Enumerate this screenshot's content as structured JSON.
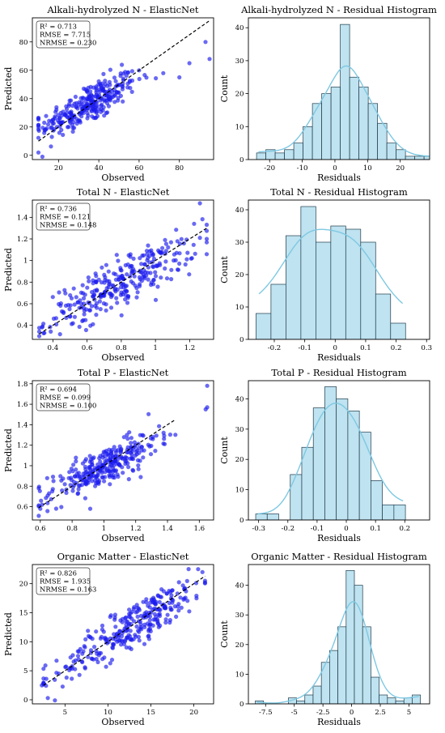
{
  "chart_data": [
    {
      "id": "p1s",
      "type": "scatter",
      "title": "Alkali-hydrolyzed N - ElasticNet",
      "xlabel": "Observed",
      "ylabel": "Predicted",
      "xlim": [
        7,
        97
      ],
      "ylim": [
        -3,
        97
      ],
      "xticks": [
        20,
        40,
        60,
        80
      ],
      "yticks": [
        0,
        20,
        40,
        60,
        80
      ],
      "stats": [
        "R² = 0.713",
        "RMSE = 7.715",
        "NRMSE = 0.230"
      ],
      "point_color": "#1a1aee",
      "diagonal": true,
      "trend": {
        "slope": 0.71,
        "intercept": 11.0,
        "noise": 7.0
      },
      "x_range": [
        10,
        95
      ],
      "n_points": 300,
      "x_center": 35,
      "x_spread": 12,
      "extra_points": [
        [
          60,
          60
        ],
        [
          72,
          58
        ],
        [
          80,
          55
        ],
        [
          93,
          80
        ],
        [
          95,
          68
        ],
        [
          12,
          -1
        ],
        [
          10,
          2
        ],
        [
          85,
          65
        ]
      ]
    },
    {
      "id": "p1h",
      "type": "bar",
      "title": "Alkali-hydrolyzed N - Residual Histogram",
      "xlabel": "Residuals",
      "ylabel": "Count",
      "xlim": [
        -26.5,
        29
      ],
      "ylim": [
        0,
        43
      ],
      "xticks": [
        -20,
        -10,
        0,
        10,
        20
      ],
      "yticks": [
        0,
        10,
        20,
        30,
        40
      ],
      "bin_start": -24,
      "bin_width": 2.85,
      "values": [
        2,
        3,
        2,
        3,
        5,
        10,
        17,
        20,
        22,
        41,
        25,
        22,
        17,
        11,
        5,
        3,
        1,
        1,
        1
      ],
      "bar_color": "#bfe3f0",
      "kde_color": "#7ec8e3"
    },
    {
      "id": "p2s",
      "type": "scatter",
      "title": "Total N - ElasticNet",
      "xlabel": "Observed",
      "ylabel": "Predicted",
      "xlim": [
        0.28,
        1.34
      ],
      "ylim": [
        0.27,
        1.56
      ],
      "xticks": [
        0.4,
        0.6,
        0.8,
        1.0,
        1.2
      ],
      "yticks": [
        0.4,
        0.6,
        0.8,
        1.0,
        1.2,
        1.4
      ],
      "stats": [
        "R² = 0.736",
        "RMSE = 0.121",
        "NRMSE = 0.148"
      ],
      "point_color": "#1a1aee",
      "diagonal": true,
      "trend": {
        "slope": 0.78,
        "intercept": 0.17,
        "noise": 0.11
      },
      "x_range": [
        0.32,
        1.3
      ],
      "n_points": 300,
      "x_center": 0.8,
      "x_spread": 0.22,
      "extra_points": [
        [
          1.26,
          1.53
        ],
        [
          0.32,
          0.3
        ],
        [
          0.35,
          0.33
        ],
        [
          1.3,
          1.2
        ]
      ]
    },
    {
      "id": "p2h",
      "type": "bar",
      "title": "Total N - Residual Histogram",
      "xlabel": "Residuals",
      "ylabel": "Count",
      "xlim": [
        -0.285,
        0.31
      ],
      "ylim": [
        0,
        43
      ],
      "xticks": [
        -0.2,
        -0.1,
        0.0,
        0.1,
        0.2,
        0.3
      ],
      "yticks": [
        0,
        10,
        20,
        30,
        40
      ],
      "bin_start": -0.26,
      "bin_width": 0.0491,
      "values": [
        8,
        17,
        32,
        41,
        30,
        35,
        34,
        30,
        14,
        5
      ],
      "bar_color": "#bfe3f0",
      "kde_color": "#7ec8e3"
    },
    {
      "id": "p3s",
      "type": "scatter",
      "title": "Total P - ElasticNet",
      "xlabel": "Observed",
      "ylabel": "Predicted",
      "xlim": [
        0.55,
        1.69
      ],
      "ylim": [
        0.47,
        1.83
      ],
      "xticks": [
        0.6,
        0.8,
        1.0,
        1.2,
        1.4,
        1.6
      ],
      "yticks": [
        0.6,
        0.8,
        1.0,
        1.2,
        1.4,
        1.6,
        1.8
      ],
      "stats": [
        "R² = 0.694",
        "RMSE = 0.099",
        "NRMSE = 0.100"
      ],
      "point_color": "#1a1aee",
      "diagonal": true,
      "trend": {
        "slope": 0.73,
        "intercept": 0.26,
        "noise": 0.09
      },
      "x_range": [
        0.59,
        1.45
      ],
      "n_points": 300,
      "x_center": 1.0,
      "x_spread": 0.17,
      "extra_points": [
        [
          1.65,
          1.78
        ],
        [
          1.65,
          1.57
        ],
        [
          1.64,
          1.55
        ],
        [
          0.59,
          0.51
        ],
        [
          0.6,
          0.58
        ]
      ]
    },
    {
      "id": "p3h",
      "type": "bar",
      "title": "Total P - Residual Histogram",
      "xlabel": "Residuals",
      "ylabel": "Count",
      "xlim": [
        -0.335,
        0.285
      ],
      "ylim": [
        0,
        46
      ],
      "xticks": [
        -0.3,
        -0.2,
        -0.1,
        0.0,
        0.1,
        0.2
      ],
      "yticks": [
        0,
        10,
        20,
        30,
        40
      ],
      "bin_start": -0.31,
      "bin_width": 0.0394,
      "values": [
        2,
        2,
        0,
        15,
        24,
        37,
        44,
        40,
        36,
        29,
        13,
        5,
        5
      ],
      "bar_color": "#bfe3f0",
      "kde_color": "#7ec8e3"
    },
    {
      "id": "p4s",
      "type": "scatter",
      "title": "Organic Matter - ElasticNet",
      "xlabel": "Observed",
      "ylabel": "Predicted",
      "xlim": [
        1.2,
        22.3
      ],
      "ylim": [
        -0.7,
        23.3
      ],
      "xticks": [
        5,
        10,
        15,
        20
      ],
      "yticks": [
        0,
        5,
        10,
        15,
        20
      ],
      "stats": [
        "R² = 0.826",
        "RMSE = 1.935",
        "NRMSE = 0.163"
      ],
      "point_color": "#1a1aee",
      "diagonal": true,
      "trend": {
        "slope": 0.92,
        "intercept": 0.9,
        "noise": 1.9
      },
      "x_range": [
        2.5,
        21.3
      ],
      "n_points": 300,
      "x_center": 13,
      "x_spread": 4.5,
      "extra_points": [
        [
          2.3,
          2.5
        ],
        [
          3,
          0.3
        ],
        [
          21,
          22
        ],
        [
          20.5,
          22.5
        ]
      ]
    },
    {
      "id": "p4h",
      "type": "bar",
      "title": "Organic Matter - Residual Histogram",
      "xlabel": "Residuals",
      "ylabel": "Count",
      "xlim": [
        -9.0,
        6.8
      ],
      "ylim": [
        0,
        47
      ],
      "xticks": [
        -7.5,
        -5.0,
        -2.5,
        0.0,
        2.5,
        5.0
      ],
      "yticks": [
        0,
        10,
        20,
        30,
        40
      ],
      "bin_start": -8.4,
      "bin_width": 0.72,
      "values": [
        1,
        0,
        0,
        0,
        2,
        1,
        3,
        6,
        14,
        18,
        26,
        45,
        40,
        26,
        9,
        3,
        2,
        1,
        2,
        3
      ],
      "bar_color": "#bfe3f0",
      "kde_color": "#7ec8e3"
    }
  ]
}
